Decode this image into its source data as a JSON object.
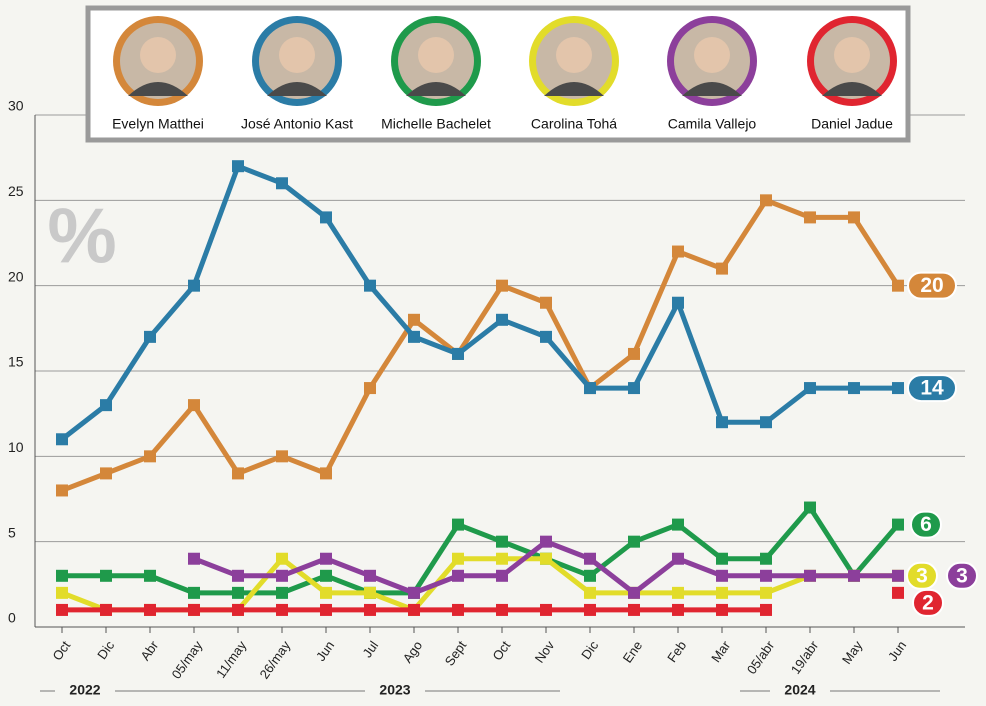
{
  "chart_data": {
    "type": "line",
    "annotation": "%",
    "categories": [
      "Oct",
      "Dic",
      "Abr",
      "05/may",
      "11/may",
      "26/may",
      "Jun",
      "Jul",
      "Ago",
      "Sept",
      "Oct",
      "Nov",
      "Dic",
      "Ene",
      "Feb",
      "Mar",
      "05/abr",
      "19/abr",
      "May",
      "Jun"
    ],
    "year_labels": [
      "2022",
      "2023",
      "2024"
    ],
    "ylim": [
      0,
      30
    ],
    "yticks": [
      0,
      5,
      10,
      15,
      20,
      25,
      30
    ],
    "grid": true,
    "series": [
      {
        "name": "Evelyn Matthei",
        "color": "#d4873a",
        "values": [
          8,
          9,
          10,
          13,
          9,
          10,
          9,
          14,
          18,
          16,
          20,
          19,
          14,
          16,
          22,
          21,
          25,
          24,
          24,
          20
        ]
      },
      {
        "name": "José Antonio Kast",
        "color": "#2b7ca6",
        "values": [
          11,
          13,
          17,
          20,
          27,
          26,
          24,
          20,
          17,
          16,
          18,
          17,
          14,
          14,
          19,
          12,
          12,
          14,
          14,
          14
        ]
      },
      {
        "name": "Michelle Bachelet",
        "color": "#1f9a4b",
        "values": [
          3,
          3,
          3,
          2,
          2,
          2,
          3,
          2,
          2,
          6,
          5,
          4,
          3,
          5,
          6,
          4,
          4,
          7,
          3,
          6
        ]
      },
      {
        "name": "Carolina Tohá",
        "color": "#e2dc2a",
        "values": [
          2,
          1,
          1,
          1,
          1,
          4,
          2,
          2,
          1,
          4,
          4,
          4,
          2,
          2,
          2,
          2,
          2,
          3,
          3,
          3
        ]
      },
      {
        "name": "Camila Vallejo",
        "color": "#8c3f9b",
        "values": [
          null,
          null,
          null,
          4,
          3,
          3,
          4,
          3,
          2,
          3,
          3,
          5,
          4,
          2,
          4,
          3,
          3,
          3,
          3,
          3
        ]
      },
      {
        "name": "Daniel Jadue",
        "color": "#e02530",
        "values": [
          1,
          1,
          1,
          1,
          1,
          1,
          1,
          1,
          1,
          1,
          1,
          1,
          1,
          1,
          1,
          1,
          1,
          null,
          null,
          2
        ]
      }
    ]
  }
}
